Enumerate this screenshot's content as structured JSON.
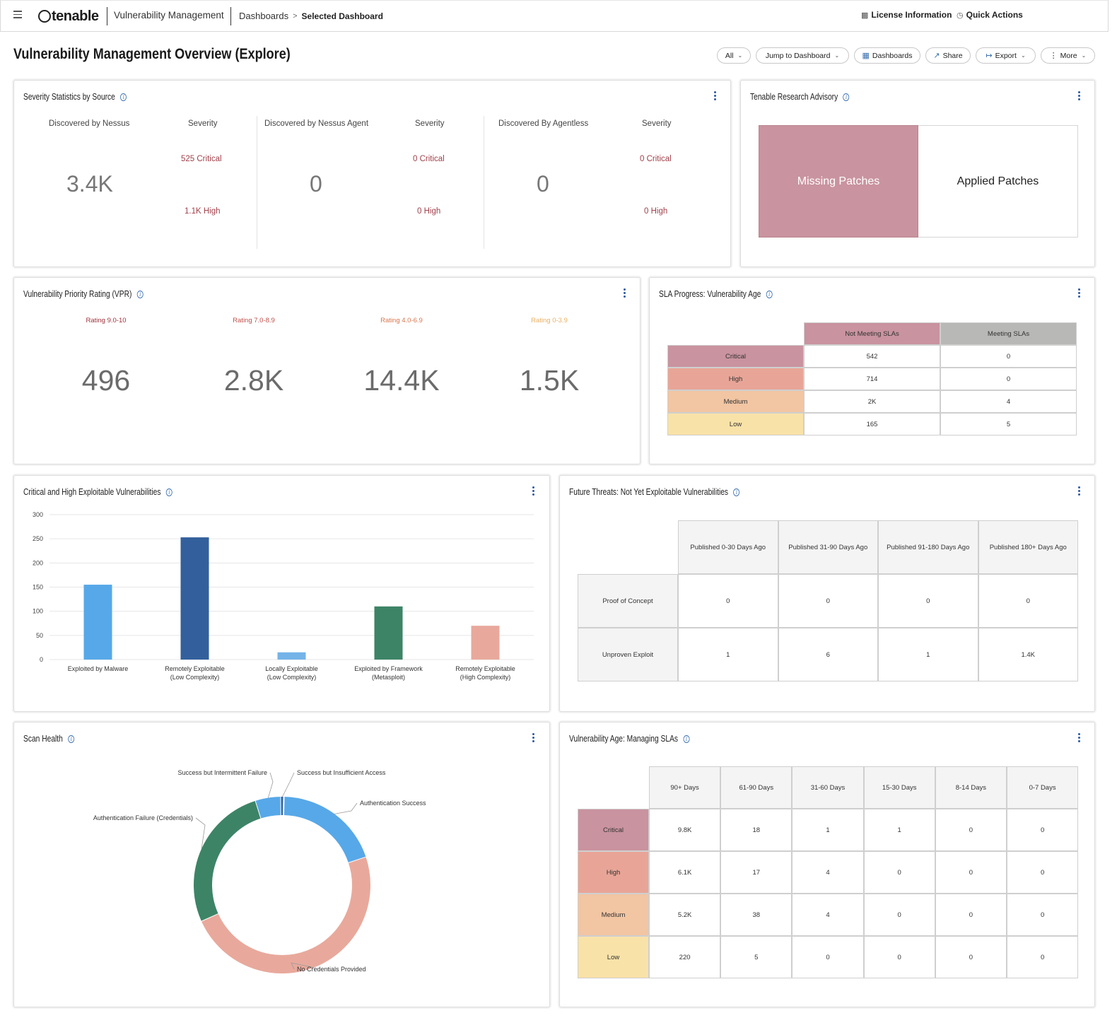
{
  "topbar": {
    "logo": "tenable",
    "app_name": "Vulnerability Management",
    "breadcrumb_root": "Dashboards",
    "breadcrumb_current": "Selected Dashboard",
    "license_label": "License Information",
    "quick_actions_label": "Quick Actions"
  },
  "header": {
    "title": "Vulnerability Management Overview (Explore)",
    "buttons": {
      "all": "All",
      "jump": "Jump to Dashboard",
      "dashboards": "Dashboards",
      "share": "Share",
      "export": "Export",
      "more": "More"
    }
  },
  "severity_stats": {
    "title": "Severity Statistics by Source",
    "severity_label": "Severity",
    "sources": [
      {
        "label": "Discovered by Nessus",
        "total": "3.4K",
        "critical": "525 Critical",
        "high": "1.1K High"
      },
      {
        "label": "Discovered by Nessus Agent",
        "total": "0",
        "critical": "0 Critical",
        "high": "0 High"
      },
      {
        "label": "Discovered By Agentless",
        "total": "0",
        "critical": "0 Critical",
        "high": "0 High"
      }
    ]
  },
  "advisory": {
    "title": "Tenable Research Advisory",
    "missing": "Missing Patches",
    "applied": "Applied Patches",
    "missing_color": "#c9939f"
  },
  "vpr": {
    "title": "Vulnerability Priority Rating (VPR)",
    "ratings": [
      {
        "label": "Rating 9.0-10",
        "value": "496",
        "color": "#a0323c"
      },
      {
        "label": "Rating 7.0-8.9",
        "value": "2.8K",
        "color": "#c0504a"
      },
      {
        "label": "Rating 4.0-6.9",
        "value": "14.4K",
        "color": "#d9764d"
      },
      {
        "label": "Rating 0-3.9",
        "value": "1.5K",
        "color": "#e9b063"
      }
    ]
  },
  "sla_progress": {
    "title": "SLA Progress: Vulnerability Age",
    "headers": [
      "Not Meeting SLAs",
      "Meeting SLAs"
    ],
    "rows": [
      {
        "label": "Critical",
        "values": [
          "542",
          "0"
        ],
        "color": "#c9939f"
      },
      {
        "label": "High",
        "values": [
          "714",
          "0"
        ],
        "color": "#e8a597"
      },
      {
        "label": "Medium",
        "values": [
          "2K",
          "4"
        ],
        "color": "#f2c5a3"
      },
      {
        "label": "Low",
        "values": [
          "165",
          "5"
        ],
        "color": "#f9e2a8"
      }
    ],
    "header_colors": [
      "#c9939f",
      "#b8b9b6"
    ]
  },
  "exploitable": {
    "title": "Critical and High Exploitable Vulnerabilities",
    "chart_data": {
      "type": "bar",
      "categories": [
        "Exploited by Malware",
        "Remotely Exploitable (Low Complexity)",
        "Locally Exploitable (Low Complexity)",
        "Exploited by Framework (Metasploit)",
        "Remotely Exploitable (High Complexity)"
      ],
      "values": [
        155,
        253,
        15,
        110,
        70
      ],
      "colors": [
        "#57a8e8",
        "#33609c",
        "#74b3e8",
        "#3d8467",
        "#e8a99c"
      ],
      "ylim": [
        0,
        300
      ],
      "yticks": [
        0,
        50,
        100,
        150,
        200,
        250,
        300
      ],
      "grid": true
    }
  },
  "future_threats": {
    "title": "Future Threats: Not Yet Exploitable Vulnerabilities",
    "headers": [
      "Published 0-30 Days Ago",
      "Published 31-90 Days Ago",
      "Published 91-180 Days Ago",
      "Published 180+ Days Ago"
    ],
    "rows": [
      {
        "label": "Proof of Concept",
        "values": [
          "0",
          "0",
          "0",
          "0"
        ]
      },
      {
        "label": "Unproven Exploit",
        "values": [
          "1",
          "6",
          "1",
          "1.4K"
        ]
      }
    ]
  },
  "scan_health": {
    "title": "Scan Health",
    "chart_data": {
      "type": "pie",
      "slices": [
        {
          "label": "Authentication Success",
          "value": 19,
          "color": "#57a8e8"
        },
        {
          "label": "No Credentials Provided",
          "value": 47,
          "color": "#e8a99c"
        },
        {
          "label": "Authentication Failure (Credentials)",
          "value": 26,
          "color": "#3d8467"
        },
        {
          "label": "Success but Intermittent Failure",
          "value": 4.5,
          "color": "#57a8e8"
        },
        {
          "label": "Success but Insufficient Access",
          "value": 0.5,
          "color": "#33609c"
        }
      ]
    }
  },
  "vuln_age": {
    "title": "Vulnerability Age: Managing SLAs",
    "headers": [
      "90+ Days",
      "61-90 Days",
      "31-60 Days",
      "15-30 Days",
      "8-14 Days",
      "0-7 Days"
    ],
    "rows": [
      {
        "label": "Critical",
        "values": [
          "9.8K",
          "18",
          "1",
          "1",
          "0",
          "0"
        ],
        "color": "#c9939f"
      },
      {
        "label": "High",
        "values": [
          "6.1K",
          "17",
          "4",
          "0",
          "0",
          "0"
        ],
        "color": "#e8a597"
      },
      {
        "label": "Medium",
        "values": [
          "5.2K",
          "38",
          "4",
          "0",
          "0",
          "0"
        ],
        "color": "#f2c5a3"
      },
      {
        "label": "Low",
        "values": [
          "220",
          "5",
          "0",
          "0",
          "0",
          "0"
        ],
        "color": "#f9e2a8"
      }
    ]
  }
}
